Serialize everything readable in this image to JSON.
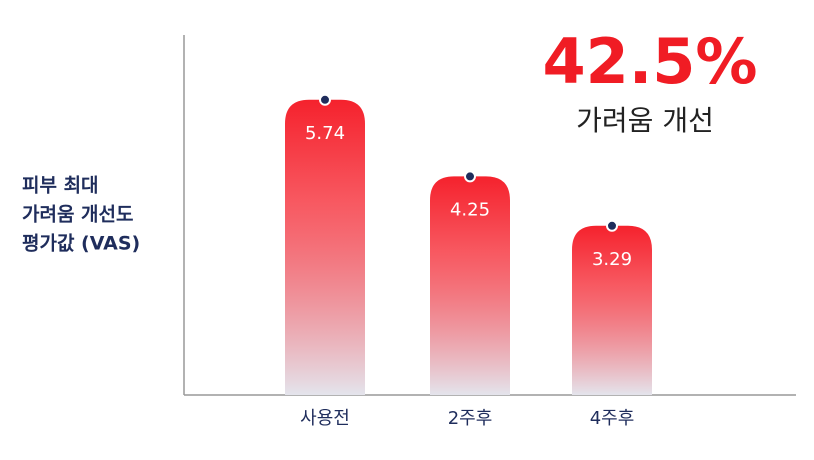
{
  "chart_data": {
    "type": "bar",
    "y_label": [
      "피부 최대",
      "가려움 개선도",
      "평가값 (VAS)"
    ],
    "annotation": "42.5%",
    "annotation_caption": "가려움 개선",
    "categories": [
      "사용전",
      "2주후",
      "4주후"
    ],
    "values": [
      5.74,
      4.25,
      3.29
    ],
    "color": "#f5222d",
    "marker_color": "#1f2d5c",
    "ylim": [
      0,
      7
    ]
  }
}
